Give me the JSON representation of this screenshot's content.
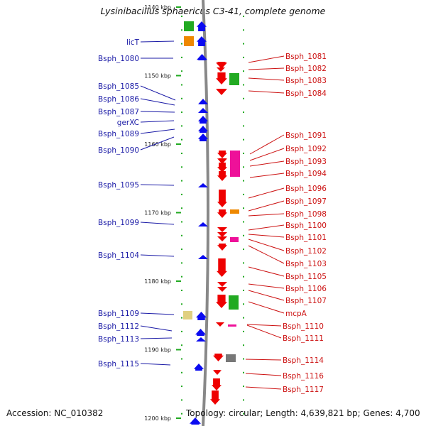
{
  "title": "Lysinibacillus sphaericus C3-41, complete genome",
  "footer": {
    "accession": "Accession: NC_010382",
    "stats": "Topology: circular; Length: 4,639,821 bp; Genes: 4,700"
  },
  "scale": {
    "unit": "kbp",
    "ticks": [
      {
        "kbp": 1140,
        "label": "1140 kbp"
      },
      {
        "kbp": 1150,
        "label": "1150 kbp"
      },
      {
        "kbp": 1160,
        "label": "1160 kbp"
      },
      {
        "kbp": 1170,
        "label": "1170 kbp"
      },
      {
        "kbp": 1180,
        "label": "1180 kbp"
      },
      {
        "kbp": 1190,
        "label": "1190 kbp"
      },
      {
        "kbp": 1200,
        "label": "1200 kbp"
      }
    ]
  },
  "colors": {
    "forward_cds": "#0a0af0",
    "reverse_cds": "#ee0000",
    "green": "#22aa22",
    "orange": "#ee8800",
    "magenta": "#ee1199",
    "khaki": "#e0d080",
    "gray": "#777777",
    "left_label": "#1a1aa6",
    "right_label": "#cc1111",
    "backbone": "#888888",
    "dots": "#22aa22"
  },
  "left_labels": [
    "licT",
    "Bsph_1080",
    "Bsph_1085",
    "Bsph_1086",
    "Bsph_1087",
    "gerXC",
    "Bsph_1089",
    "Bsph_1090",
    "Bsph_1095",
    "Bsph_1099",
    "Bsph_1104",
    "Bsph_1109",
    "Bsph_1112",
    "Bsph_1113",
    "Bsph_1115"
  ],
  "right_labels": [
    "Bsph_1081",
    "Bsph_1082",
    "Bsph_1083",
    "Bsph_1084",
    "Bsph_1091",
    "Bsph_1092",
    "Bsph_1093",
    "Bsph_1094",
    "Bsph_1096",
    "Bsph_1097",
    "Bsph_1098",
    "Bsph_1100",
    "Bsph_1101",
    "Bsph_1102",
    "Bsph_1103",
    "Bsph_1105",
    "Bsph_1106",
    "Bsph_1107",
    "mcpA",
    "Bsph_1110",
    "Bsph_1111",
    "Bsph_1114",
    "Bsph_1116",
    "Bsph_1117"
  ]
}
